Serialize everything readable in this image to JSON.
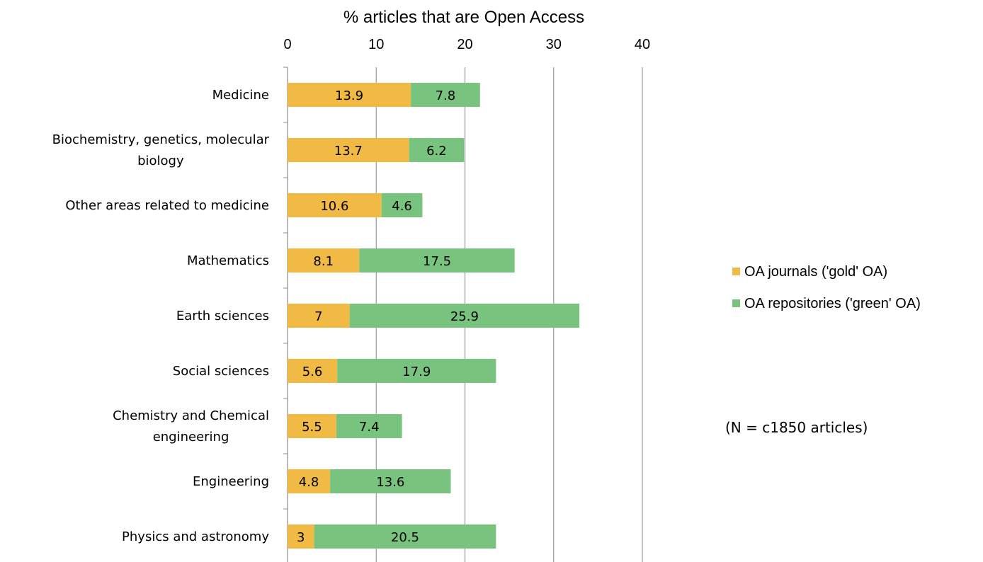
{
  "chart_data": {
    "type": "bar",
    "orientation": "horizontal",
    "stacked": true,
    "title": "% articles that are Open Access",
    "x_axis_position": "top",
    "xlim": [
      0,
      40
    ],
    "x_ticks": [
      "0",
      "10",
      "20",
      "30",
      "40"
    ],
    "grid": "vertical",
    "legend_position": "right",
    "categories": [
      "Medicine",
      "Biochemistry, genetics, molecular biology",
      "Other areas related to medicine",
      "Mathematics",
      "Earth sciences",
      "Social sciences",
      "Chemistry and Chemical engineering",
      "Engineering",
      "Physics and astronomy"
    ],
    "category_lines": [
      [
        "Medicine"
      ],
      [
        "Biochemistry, genetics, molecular",
        "biology"
      ],
      [
        "Other areas related to medicine"
      ],
      [
        "Mathematics"
      ],
      [
        "Earth sciences"
      ],
      [
        "Social sciences"
      ],
      [
        "Chemistry and Chemical",
        "engineering"
      ],
      [
        "Engineering"
      ],
      [
        "Physics and astronomy"
      ]
    ],
    "series": [
      {
        "name": "OA journals ('gold' OA)",
        "color": "#F0BA45",
        "values": [
          13.9,
          13.7,
          10.6,
          8.1,
          7,
          5.6,
          5.5,
          4.8,
          3
        ],
        "labels": [
          "13.9",
          "13.7",
          "10.6",
          "8.1",
          "7",
          "5.6",
          "5.5",
          "4.8",
          "3"
        ]
      },
      {
        "name": "OA repositories ('green' OA)",
        "color": "#78C47E",
        "values": [
          7.8,
          6.2,
          4.6,
          17.5,
          25.9,
          17.9,
          7.4,
          13.6,
          20.5
        ],
        "labels": [
          "7.8",
          "6.2",
          "4.6",
          "17.5",
          "25.9",
          "17.9",
          "7.4",
          "13.6",
          "20.5"
        ]
      }
    ],
    "annotation": "(N = c1850 articles)"
  }
}
